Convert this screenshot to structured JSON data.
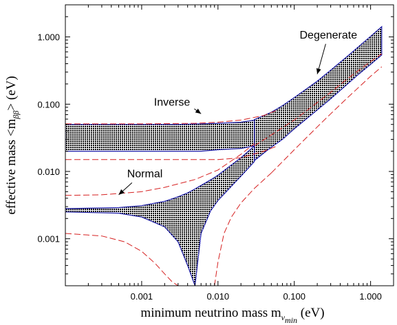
{
  "chart_data": {
    "type": "area",
    "title": "",
    "xlabel": {
      "main": "minimum neutrino mass  m",
      "sub_nu": "ν",
      "sub_min": "min",
      "unit": " (eV)"
    },
    "ylabel": {
      "main": "effective mass <m",
      "sub": "ββ",
      "tail": "> (eV)"
    },
    "x_scale": "log",
    "y_scale": "log",
    "xlim": [
      0.0001,
      2.0
    ],
    "ylim": [
      0.0002,
      3.0
    ],
    "x_ticks": [
      {
        "value": 0.001,
        "label": "0.001"
      },
      {
        "value": 0.01,
        "label": "0.010"
      },
      {
        "value": 0.1,
        "label": "0.100"
      },
      {
        "value": 1.0,
        "label": "1.000"
      }
    ],
    "y_ticks": [
      {
        "value": 0.001,
        "label": "0.001"
      },
      {
        "value": 0.01,
        "label": "0.010"
      },
      {
        "value": 0.1,
        "label": "0.100"
      },
      {
        "value": 1.0,
        "label": "1.000"
      }
    ],
    "grid": false,
    "legend": "none",
    "colors": {
      "band_fill": "#000000",
      "band_edge": "#1a1aa8",
      "dashed": "#d62020",
      "axis": "#000000"
    },
    "series": [
      {
        "band": "inverse",
        "x": [
          0.0001,
          0.001,
          0.003,
          0.006,
          0.01,
          0.02,
          0.03
        ],
        "upper": [
          0.05,
          0.05,
          0.05,
          0.051,
          0.052,
          0.054,
          0.058
        ],
        "lower": [
          0.02,
          0.02,
          0.02,
          0.02,
          0.021,
          0.022,
          0.024
        ]
      },
      {
        "band": "normal",
        "x": [
          0.0001,
          0.0005,
          0.001,
          0.002,
          0.003,
          0.004,
          0.005,
          0.006,
          0.008,
          0.01,
          0.02,
          0.03
        ],
        "upper": [
          0.0028,
          0.0029,
          0.0031,
          0.0036,
          0.0042,
          0.0048,
          0.0055,
          0.0062,
          0.0075,
          0.0088,
          0.016,
          0.024
        ],
        "lower": [
          0.0025,
          0.0024,
          0.0021,
          0.0015,
          0.0009,
          0.0004,
          0.0002,
          0.0012,
          0.0026,
          0.0037,
          0.0085,
          0.014
        ]
      },
      {
        "band": "degenerate",
        "x": [
          0.03,
          0.05,
          0.07,
          0.1,
          0.2,
          0.3,
          0.5,
          0.7,
          1.0,
          1.4
        ],
        "upper": [
          0.059,
          0.076,
          0.095,
          0.125,
          0.22,
          0.32,
          0.52,
          0.72,
          1.02,
          1.42
        ],
        "lower": [
          0.0145,
          0.023,
          0.03,
          0.043,
          0.082,
          0.12,
          0.2,
          0.28,
          0.39,
          0.54
        ]
      },
      {
        "line": "dashed-inverse-upper",
        "x": [
          0.0001,
          0.001,
          0.005,
          0.01,
          0.02,
          0.04,
          0.06
        ],
        "y": [
          0.051,
          0.051,
          0.052,
          0.054,
          0.058,
          0.068,
          0.082
        ]
      },
      {
        "line": "dashed-inverse-lower",
        "x": [
          0.0001,
          0.001,
          0.005,
          0.01,
          0.02,
          0.04,
          0.06
        ],
        "y": [
          0.015,
          0.015,
          0.015,
          0.015,
          0.016,
          0.02,
          0.024
        ]
      },
      {
        "line": "dashed-normal-upper",
        "x": [
          0.0001,
          0.0003,
          0.001,
          0.002,
          0.005,
          0.01,
          0.02,
          0.03
        ],
        "y": [
          0.0044,
          0.0045,
          0.005,
          0.0058,
          0.0076,
          0.0105,
          0.018,
          0.026
        ]
      },
      {
        "line": "dashed-normal-lower",
        "x": [
          0.0001,
          0.0003,
          0.0006,
          0.001,
          0.0015,
          0.002,
          0.0025,
          0.003
        ],
        "y": [
          0.0012,
          0.0011,
          0.0009,
          0.00065,
          0.00043,
          0.0003,
          0.00023,
          0.0002
        ]
      },
      {
        "line": "dashed-normal-lower-right",
        "x": [
          0.009,
          0.01,
          0.012,
          0.015,
          0.02,
          0.03,
          0.05
        ],
        "y": [
          0.0002,
          0.00045,
          0.0012,
          0.0021,
          0.0034,
          0.0056,
          0.0095
        ]
      },
      {
        "line": "dashed-degenerate-upper",
        "x": [
          0.03,
          0.05,
          0.1,
          0.3,
          0.5,
          1.0,
          1.4
        ],
        "y": [
          0.024,
          0.035,
          0.058,
          0.15,
          0.24,
          0.43,
          0.56
        ]
      },
      {
        "line": "dashed-degenerate-lower",
        "x": [
          0.05,
          0.1,
          0.2,
          0.3,
          0.5,
          1.0,
          1.4
        ],
        "y": [
          0.0095,
          0.021,
          0.046,
          0.072,
          0.125,
          0.26,
          0.36
        ]
      }
    ],
    "annotations": [
      {
        "text": "Degenerate",
        "x": 0.28,
        "y": 0.95,
        "arrow_to": [
          0.2,
          0.28
        ]
      },
      {
        "text": "Inverse",
        "x": 0.0025,
        "y": 0.095,
        "arrow_to": [
          0.006,
          0.072
        ]
      },
      {
        "text": "Normal",
        "x": 0.0011,
        "y": 0.0082,
        "arrow_to": [
          0.0005,
          0.0045
        ]
      }
    ]
  }
}
